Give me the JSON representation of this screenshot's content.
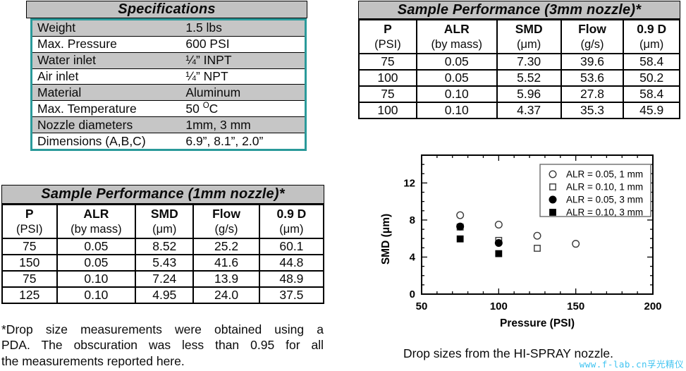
{
  "colors": {
    "table_header_bg": "#c2c2c2",
    "zebra_row_bg": "#c6c6c6",
    "spec_border_teal": "#2a9a9a",
    "watermark_cyan": "#41c4f1"
  },
  "spec_table": {
    "title": "Specifications",
    "rows": [
      [
        "Weight",
        "1.5 lbs"
      ],
      [
        "Max. Pressure",
        "600 PSI"
      ],
      [
        "Water inlet",
        "¼” INPT"
      ],
      [
        "Air inlet",
        "¼” NPT"
      ],
      [
        "Material",
        "Aluminum"
      ],
      [
        "Max. Temperature",
        [
          "50 ",
          {
            "sup": "O"
          },
          "C"
        ]
      ],
      [
        "Nozzle diameters",
        "1mm, 3 mm"
      ],
      [
        "Dimensions (A,B,C)",
        "6.9”, 8.1”, 2.0”"
      ]
    ]
  },
  "perf_3mm": {
    "title": "Sample Performance (3mm nozzle)*",
    "columns": [
      {
        "main": "P",
        "sub": "(PSI)"
      },
      {
        "main": "ALR",
        "sub": "(by mass)"
      },
      {
        "main": "SMD",
        "sub": "(μm)"
      },
      {
        "main": "Flow",
        "sub": "(g/s)"
      },
      {
        "main": "0.9 D",
        "sub": "(μm)"
      }
    ],
    "rows": [
      [
        "75",
        "0.05",
        "7.30",
        "39.6",
        "58.4"
      ],
      [
        "100",
        "0.05",
        "5.52",
        "53.6",
        "50.2"
      ],
      [
        "75",
        "0.10",
        "5.96",
        "27.8",
        "58.4"
      ],
      [
        "100",
        "0.10",
        "4.37",
        "35.3",
        "45.9"
      ]
    ]
  },
  "perf_1mm": {
    "title": "Sample Performance (1mm nozzle)*",
    "columns": [
      {
        "main": "P",
        "sub": "(PSI)"
      },
      {
        "main": "ALR",
        "sub": "(by mass)"
      },
      {
        "main": "SMD",
        "sub": "(μm)"
      },
      {
        "main": "Flow",
        "sub": "(g/s)"
      },
      {
        "main": "0.9 D",
        "sub": "(μm)"
      }
    ],
    "rows": [
      [
        "75",
        "0.05",
        "8.52",
        "25.2",
        "60.1"
      ],
      [
        "150",
        "0.05",
        "5.43",
        "41.6",
        "44.8"
      ],
      [
        "75",
        "0.10",
        "7.24",
        "13.9",
        "48.9"
      ],
      [
        "125",
        "0.10",
        "4.95",
        "24.0",
        "37.5"
      ]
    ]
  },
  "footnote": {
    "lines": [
      "*Drop size measurements were obtained using a",
      "PDA.  The obscuration was less than 0.95 for all",
      "the measurements reported here."
    ]
  },
  "caption": "Drop sizes from the HI-SPRAY nozzle.",
  "watermark": "www.f-lab.cn孚光精仪",
  "chart_data": {
    "type": "scatter",
    "title": "",
    "xlabel": "Pressure (PSI)",
    "ylabel": "SMD (μm)",
    "xlim": [
      50,
      200
    ],
    "ylim": [
      0,
      15
    ],
    "x_major_ticks": [
      50,
      100,
      150,
      200
    ],
    "x_minor_step": 10,
    "y_major_ticks": [
      0,
      4,
      8,
      12
    ],
    "y_minor_step": 1,
    "grid": false,
    "legend_position": "top-right",
    "series": [
      {
        "name": "ALR = 0.05, 1 mm",
        "marker": "circle-open",
        "points": [
          [
            75,
            8.52
          ],
          [
            100,
            7.5
          ],
          [
            125,
            6.3
          ],
          [
            150,
            5.43
          ]
        ]
      },
      {
        "name": "ALR = 0.10, 1 mm",
        "marker": "square-open",
        "points": [
          [
            75,
            7.24
          ],
          [
            100,
            5.8
          ],
          [
            125,
            4.95
          ]
        ]
      },
      {
        "name": "ALR = 0.05, 3 mm",
        "marker": "circle-filled",
        "points": [
          [
            75,
            7.3
          ],
          [
            100,
            5.52
          ]
        ]
      },
      {
        "name": "ALR = 0.10, 3 mm",
        "marker": "square-filled",
        "points": [
          [
            75,
            5.96
          ],
          [
            100,
            4.37
          ]
        ]
      }
    ]
  }
}
